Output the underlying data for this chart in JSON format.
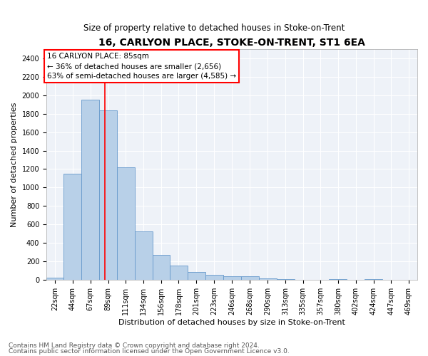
{
  "title": "16, CARLYON PLACE, STOKE-ON-TRENT, ST1 6EA",
  "subtitle": "Size of property relative to detached houses in Stoke-on-Trent",
  "xlabel": "Distribution of detached houses by size in Stoke-on-Trent",
  "ylabel": "Number of detached properties",
  "footnote1": "Contains HM Land Registry data © Crown copyright and database right 2024.",
  "footnote2": "Contains public sector information licensed under the Open Government Licence v3.0.",
  "annotation_line1": "16 CARLYON PLACE: 85sqm",
  "annotation_line2": "← 36% of detached houses are smaller (2,656)",
  "annotation_line3": "63% of semi-detached houses are larger (4,585) →",
  "categories": [
    "22sqm",
    "44sqm",
    "67sqm",
    "89sqm",
    "111sqm",
    "134sqm",
    "156sqm",
    "178sqm",
    "201sqm",
    "223sqm",
    "246sqm",
    "268sqm",
    "290sqm",
    "313sqm",
    "335sqm",
    "357sqm",
    "380sqm",
    "402sqm",
    "424sqm",
    "447sqm",
    "469sqm"
  ],
  "values": [
    25,
    1150,
    1950,
    1840,
    1220,
    520,
    270,
    150,
    80,
    55,
    40,
    40,
    15,
    5,
    2,
    2,
    3,
    1,
    3,
    1,
    1
  ],
  "bin_edges": [
    11,
    33,
    55.5,
    78,
    100,
    122.5,
    145,
    167,
    189.5,
    212,
    234.5,
    257,
    279.5,
    302,
    324.5,
    346,
    368.5,
    391,
    413.5,
    436,
    458,
    480
  ],
  "bar_color": "#b8d0e8",
  "bar_edge_color": "#6699cc",
  "red_line_x": 85,
  "ylim": [
    0,
    2500
  ],
  "yticks": [
    0,
    200,
    400,
    600,
    800,
    1000,
    1200,
    1400,
    1600,
    1800,
    2000,
    2200,
    2400
  ],
  "bg_color": "#eef2f8",
  "grid_color": "#ffffff",
  "title_fontsize": 10,
  "subtitle_fontsize": 8.5,
  "label_fontsize": 8,
  "tick_fontsize": 7,
  "footnote_fontsize": 6.5
}
